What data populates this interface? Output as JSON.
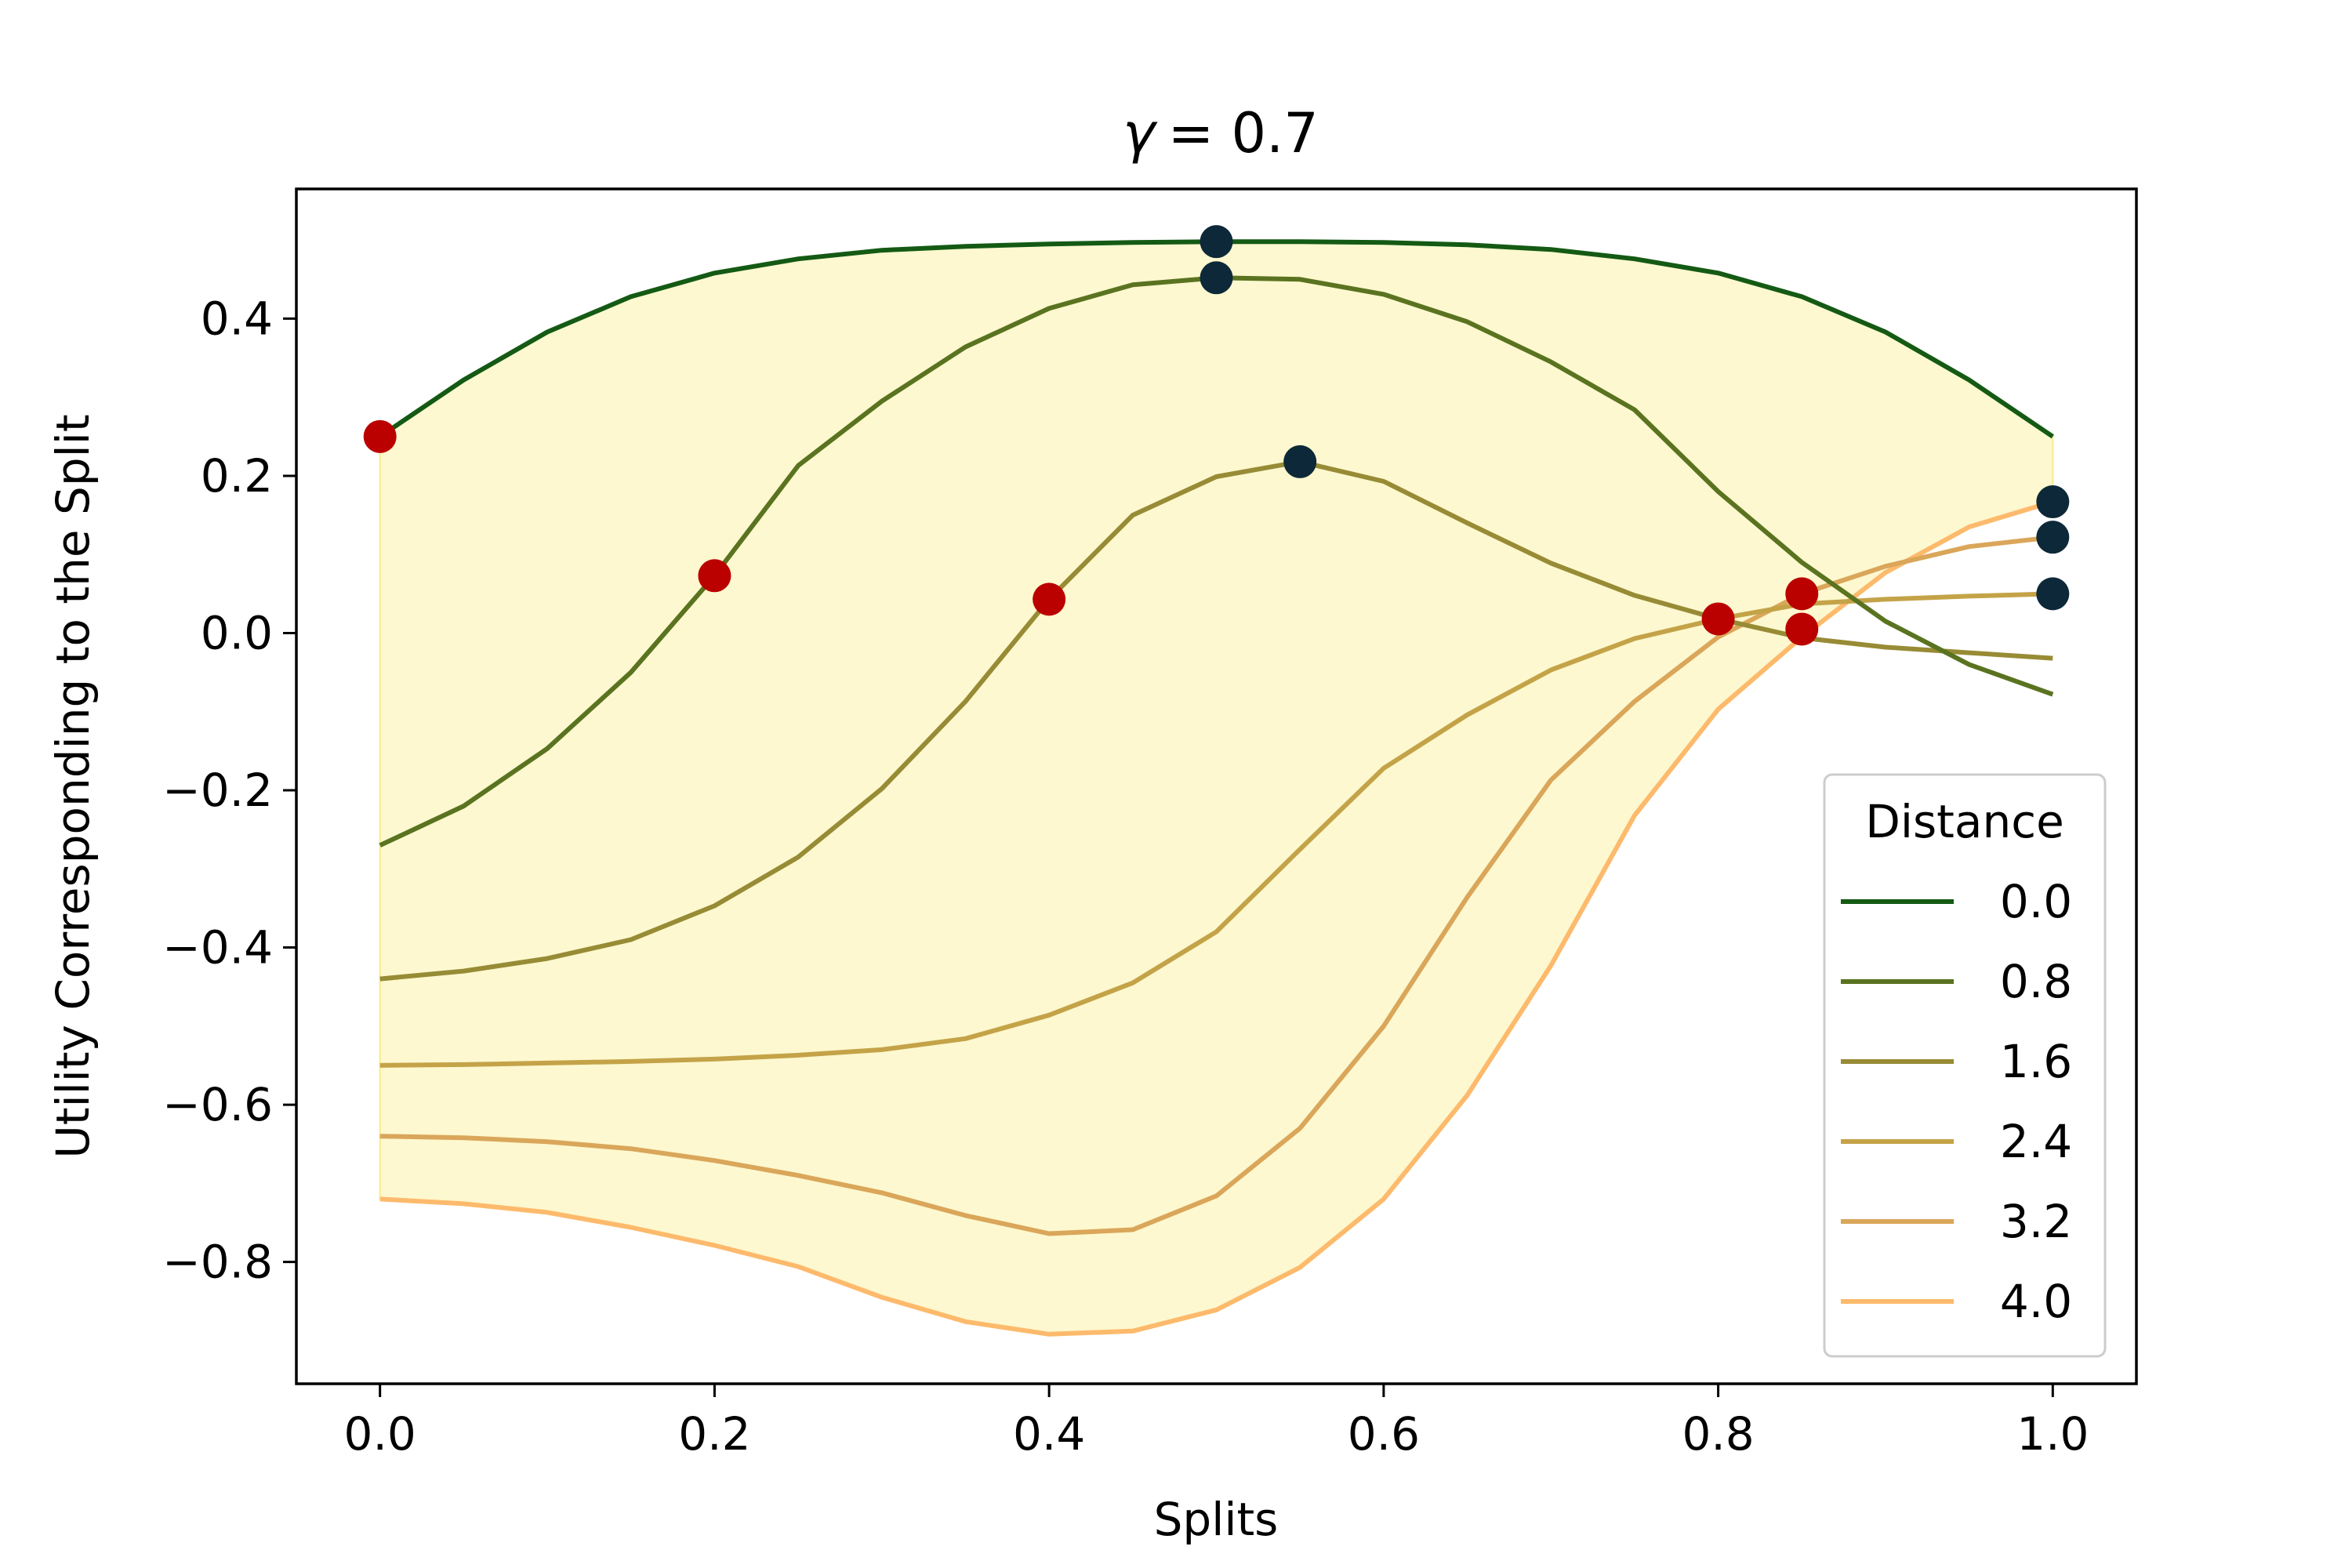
{
  "chart_data": {
    "type": "line",
    "title_prefix": "γ",
    "title_value": "= 0.7",
    "xlabel": "Splits",
    "ylabel": "Utility Corresponding to the Split",
    "xlim": [
      -0.05,
      1.05
    ],
    "ylim": [
      -0.955,
      0.565
    ],
    "xticks": [
      0.0,
      0.2,
      0.4,
      0.6,
      0.8,
      1.0
    ],
    "xtick_labels": [
      "0.0",
      "0.2",
      "0.4",
      "0.6",
      "0.8",
      "1.0"
    ],
    "yticks": [
      0.4,
      0.2,
      0.0,
      -0.2,
      -0.4,
      -0.6,
      -0.8
    ],
    "ytick_labels": [
      "0.4",
      "0.2",
      "0.0",
      "−0.2",
      "−0.4",
      "−0.6",
      "−0.8"
    ],
    "x": [
      0.0,
      0.05,
      0.1,
      0.15,
      0.2,
      0.25,
      0.3,
      0.35,
      0.4,
      0.45,
      0.5,
      0.55,
      0.6,
      0.65,
      0.7,
      0.75,
      0.8,
      0.85,
      0.9,
      0.95,
      1.0
    ],
    "legend_title": "Distance",
    "legend_position": "lower right",
    "fill_color": "#fdf8cf",
    "fill_edge_color": "#f8ee9a",
    "series": [
      {
        "name": "0.0",
        "color": "#145a14",
        "values": [
          0.25,
          0.322,
          0.383,
          0.428,
          0.458,
          0.476,
          0.487,
          0.492,
          0.495,
          0.497,
          0.498,
          0.498,
          0.497,
          0.494,
          0.488,
          0.476,
          0.458,
          0.428,
          0.383,
          0.322,
          0.25
        ]
      },
      {
        "name": "0.8",
        "color": "#5a7320",
        "values": [
          -0.27,
          -0.22,
          -0.147,
          -0.05,
          0.073,
          0.213,
          0.295,
          0.364,
          0.413,
          0.443,
          0.452,
          0.45,
          0.431,
          0.396,
          0.345,
          0.284,
          0.18,
          0.09,
          0.015,
          -0.04,
          -0.078
        ]
      },
      {
        "name": "1.6",
        "color": "#978b35",
        "values": [
          -0.44,
          -0.43,
          -0.414,
          -0.39,
          -0.347,
          -0.285,
          -0.198,
          -0.087,
          0.043,
          0.15,
          0.199,
          0.218,
          0.193,
          0.14,
          0.089,
          0.048,
          0.018,
          -0.006,
          -0.018,
          -0.025,
          -0.032
        ]
      },
      {
        "name": "2.4",
        "color": "#c4a348",
        "values": [
          -0.55,
          -0.549,
          -0.547,
          -0.545,
          -0.542,
          -0.537,
          -0.53,
          -0.516,
          -0.486,
          -0.445,
          -0.38,
          -0.275,
          -0.172,
          -0.104,
          -0.047,
          -0.007,
          0.018,
          0.037,
          0.043,
          0.047,
          0.05
        ]
      },
      {
        "name": "3.2",
        "color": "#daa65a",
        "values": [
          -0.64,
          -0.642,
          -0.647,
          -0.656,
          -0.671,
          -0.69,
          -0.712,
          -0.741,
          -0.764,
          -0.759,
          -0.716,
          -0.63,
          -0.5,
          -0.336,
          -0.187,
          -0.087,
          -0.005,
          0.05,
          0.085,
          0.11,
          0.122
        ]
      },
      {
        "name": "4.0",
        "color": "#fdba6c",
        "values": [
          -0.72,
          -0.726,
          -0.737,
          -0.756,
          -0.779,
          -0.806,
          -0.845,
          -0.876,
          -0.892,
          -0.888,
          -0.861,
          -0.807,
          -0.72,
          -0.588,
          -0.423,
          -0.232,
          -0.097,
          -0.005,
          0.077,
          0.135,
          0.167
        ]
      }
    ],
    "min_markers": {
      "color": "#bb0000",
      "points": [
        [
          0.0,
          0.25
        ],
        [
          0.2,
          0.073
        ],
        [
          0.4,
          0.043
        ],
        [
          0.8,
          0.018
        ],
        [
          0.85,
          0.05
        ],
        [
          0.85,
          0.005
        ]
      ]
    },
    "max_markers": {
      "color": "#0d2838",
      "points": [
        [
          0.5,
          0.498
        ],
        [
          0.5,
          0.452
        ],
        [
          0.55,
          0.218
        ],
        [
          1.0,
          0.167
        ],
        [
          1.0,
          0.122
        ],
        [
          1.0,
          0.05
        ]
      ]
    }
  }
}
